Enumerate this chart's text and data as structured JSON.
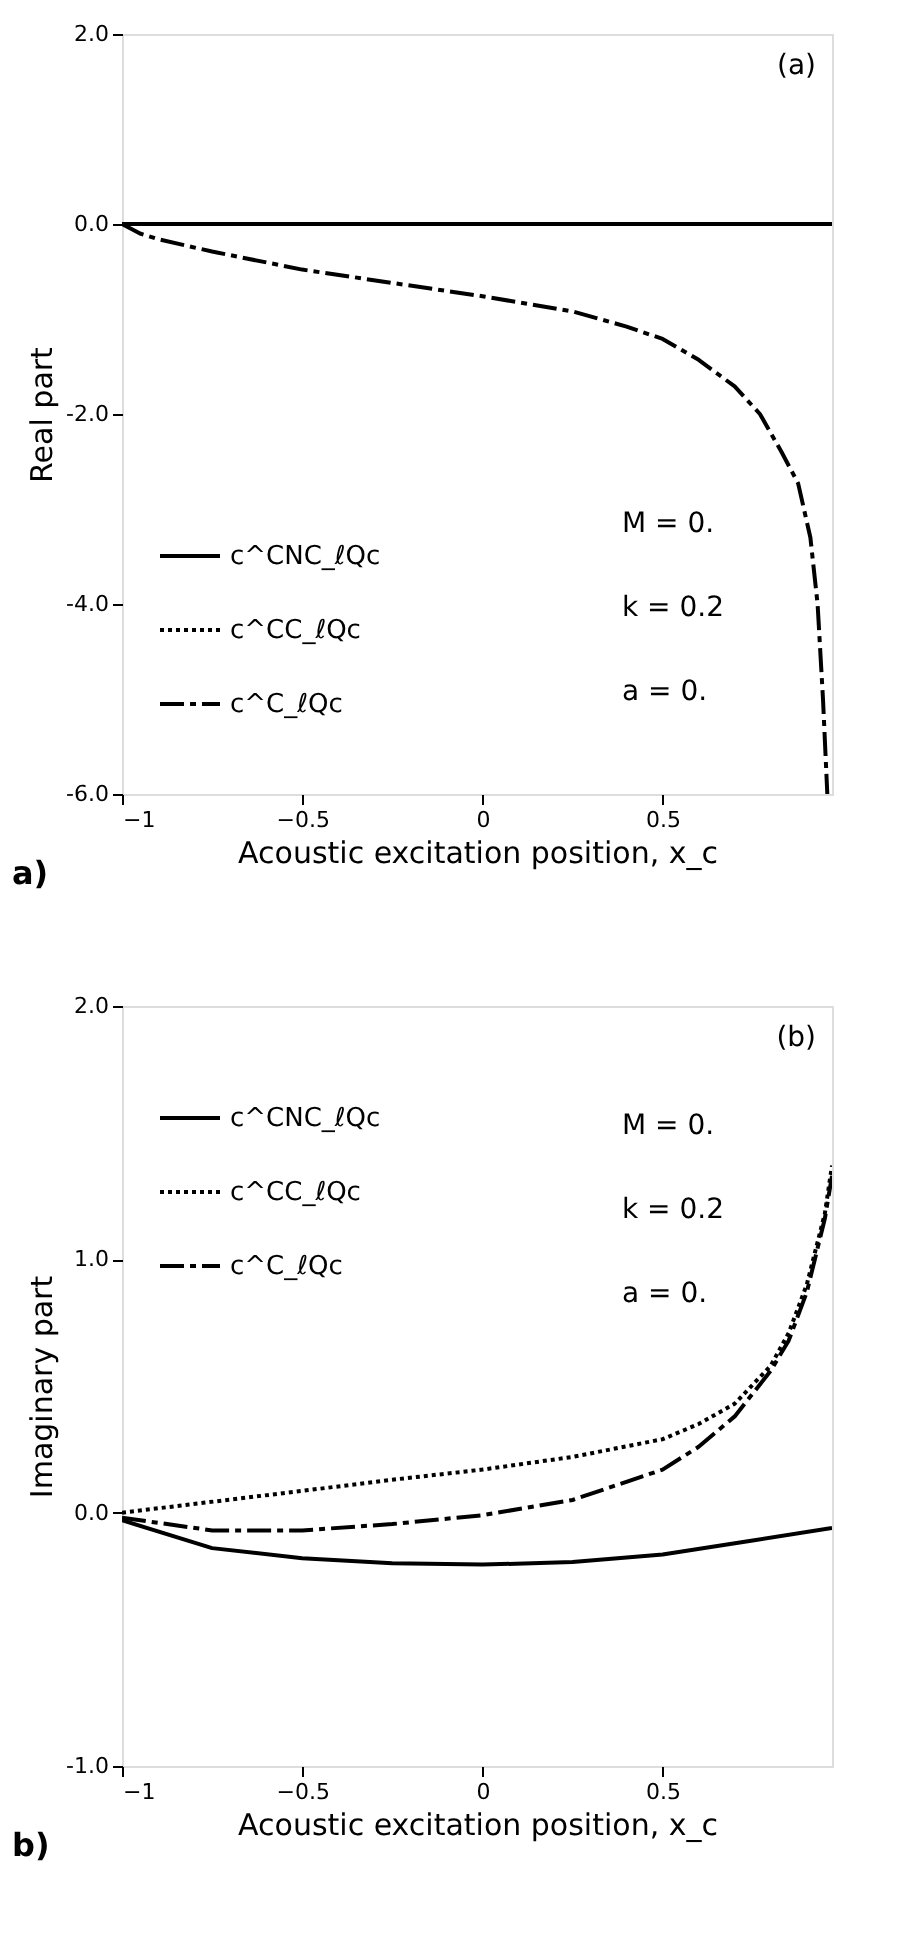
{
  "chart_data": [
    {
      "type": "line",
      "xlabel": "Acoustic excitation position, x_c",
      "ylabel": "Real part",
      "annotations": [
        "(a)",
        "M = 0.",
        "k = 0.2",
        "a = 0.",
        "a)"
      ],
      "xlim": [
        -1,
        0.97
      ],
      "xticks": [
        -1,
        -0.5,
        0,
        0.5
      ],
      "ylim": [
        -6,
        2
      ],
      "yticks": [
        {
          "value": -6,
          "label": "-6.0"
        },
        {
          "value": -4,
          "label": "-4.0"
        },
        {
          "value": -2,
          "label": "-2.0"
        },
        {
          "value": 0,
          "label": "0.0"
        },
        {
          "value": 2,
          "label": "2.0"
        }
      ],
      "grid": false,
      "legend": "bottom left",
      "marker": "none",
      "series": [
        {
          "name": "c^CNC_ℓQc",
          "color": "#000000",
          "line_style": "solid",
          "x": [
            -1,
            0.97
          ],
          "values": [
            0,
            0
          ]
        },
        {
          "name": "c^CC_ℓQc",
          "color": "#000000",
          "line_style": "dotted"
        },
        {
          "name": "c^C_ℓQc",
          "color": "#000000",
          "line_style": "dashed",
          "x": [
            -1,
            -0.95,
            -0.9,
            -0.75,
            -0.5,
            -0.25,
            0,
            0.25,
            0.4,
            0.5,
            0.6,
            0.7,
            0.77,
            0.83,
            0.876,
            0.91,
            0.93,
            0.945,
            0.957
          ],
          "values": [
            0,
            -0.1,
            -0.16,
            -0.29,
            -0.48,
            -0.62,
            -0.76,
            -0.92,
            -1.08,
            -1.21,
            -1.43,
            -1.71,
            -2.0,
            -2.4,
            -2.73,
            -3.3,
            -4.0,
            -5.0,
            -6.0
          ]
        }
      ]
    },
    {
      "type": "line",
      "xlabel": "Acoustic excitation position, x_c",
      "ylabel": "Imaginary part",
      "annotations": [
        "(b)",
        "M = 0.",
        "k = 0.2",
        "a = 0.",
        "b)"
      ],
      "xlim": [
        -1,
        0.97
      ],
      "xticks": [
        -1,
        -0.5,
        0,
        0.5
      ],
      "ylim": [
        -1,
        2
      ],
      "yticks": [
        {
          "value": -1,
          "label": "-1.0"
        },
        {
          "value": 0,
          "label": "0.0"
        },
        {
          "value": 1,
          "label": "1.0"
        },
        {
          "value": 2,
          "label": "2.0"
        }
      ],
      "grid": false,
      "legend": "top left",
      "marker": "none",
      "series": [
        {
          "name": "c^CNC_ℓQc",
          "color": "#000000",
          "line_style": "solid",
          "x": [
            -1,
            -0.75,
            -0.5,
            -0.25,
            0,
            0.25,
            0.5,
            0.75,
            0.97
          ],
          "values": [
            -0.03,
            -0.14,
            -0.18,
            -0.2,
            -0.205,
            -0.195,
            -0.165,
            -0.11,
            -0.06
          ]
        },
        {
          "name": "c^CC_ℓQc",
          "color": "#000000",
          "line_style": "dotted",
          "x": [
            -1,
            -0.5,
            -0.25,
            0,
            0.25,
            0.5,
            0.6,
            0.7,
            0.8,
            0.85,
            0.9,
            0.95,
            0.97
          ],
          "values": [
            0.0,
            0.086,
            0.13,
            0.17,
            0.22,
            0.29,
            0.35,
            0.43,
            0.58,
            0.71,
            0.9,
            1.18,
            1.37
          ]
        },
        {
          "name": "c^C_ℓQc",
          "color": "#000000",
          "line_style": "dashed",
          "x": [
            -1,
            -0.75,
            -0.5,
            -0.25,
            0,
            0.25,
            0.5,
            0.6,
            0.7,
            0.8,
            0.85,
            0.9,
            0.95,
            0.97
          ],
          "values": [
            -0.02,
            -0.07,
            -0.07,
            -0.045,
            -0.01,
            0.05,
            0.17,
            0.26,
            0.38,
            0.56,
            0.68,
            0.87,
            1.16,
            1.33
          ]
        }
      ]
    }
  ]
}
